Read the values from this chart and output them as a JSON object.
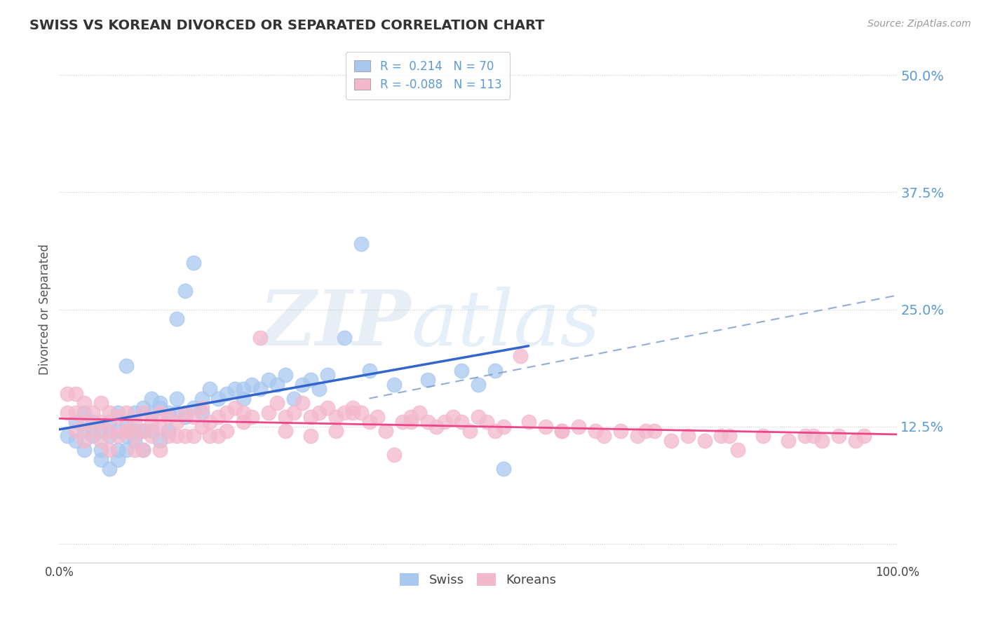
{
  "title": "SWISS VS KOREAN DIVORCED OR SEPARATED CORRELATION CHART",
  "source": "Source: ZipAtlas.com",
  "ylabel": "Divorced or Separated",
  "xlim": [
    0.0,
    1.0
  ],
  "ylim": [
    -0.02,
    0.52
  ],
  "yticks": [
    0.0,
    0.125,
    0.25,
    0.375,
    0.5
  ],
  "ytick_labels": [
    "",
    "12.5%",
    "25.0%",
    "37.5%",
    "50.0%"
  ],
  "xtick_vals": [
    0.0,
    1.0
  ],
  "xtick_labels": [
    "0.0%",
    "100.0%"
  ],
  "swiss_color": "#a8c8f0",
  "korean_color": "#f4b8cc",
  "swiss_line_color": "#3366cc",
  "korean_line_color": "#ee4488",
  "dash_line_color": "#7799cc",
  "ytick_color": "#5b9bd5",
  "legend_swiss_r": "0.214",
  "legend_swiss_n": "70",
  "legend_korean_r": "-0.088",
  "legend_korean_n": "113",
  "watermark_zip": "ZIP",
  "watermark_atlas": "atlas",
  "background_color": "#ffffff",
  "grid_color": "#c8c8c8",
  "swiss_x": [
    0.01,
    0.02,
    0.02,
    0.03,
    0.03,
    0.03,
    0.04,
    0.04,
    0.05,
    0.05,
    0.05,
    0.06,
    0.06,
    0.06,
    0.07,
    0.07,
    0.07,
    0.07,
    0.08,
    0.08,
    0.08,
    0.08,
    0.09,
    0.09,
    0.09,
    0.1,
    0.1,
    0.1,
    0.11,
    0.11,
    0.11,
    0.12,
    0.12,
    0.12,
    0.13,
    0.13,
    0.14,
    0.14,
    0.14,
    0.15,
    0.15,
    0.16,
    0.16,
    0.17,
    0.17,
    0.18,
    0.19,
    0.2,
    0.21,
    0.22,
    0.22,
    0.23,
    0.24,
    0.25,
    0.26,
    0.27,
    0.28,
    0.29,
    0.3,
    0.31,
    0.32,
    0.34,
    0.36,
    0.37,
    0.4,
    0.44,
    0.48,
    0.5,
    0.52,
    0.53
  ],
  "swiss_y": [
    0.115,
    0.11,
    0.13,
    0.1,
    0.12,
    0.14,
    0.115,
    0.13,
    0.1,
    0.12,
    0.09,
    0.115,
    0.13,
    0.08,
    0.1,
    0.12,
    0.14,
    0.09,
    0.115,
    0.13,
    0.1,
    0.19,
    0.12,
    0.11,
    0.14,
    0.145,
    0.12,
    0.1,
    0.155,
    0.12,
    0.14,
    0.15,
    0.11,
    0.145,
    0.14,
    0.12,
    0.24,
    0.14,
    0.155,
    0.27,
    0.135,
    0.3,
    0.145,
    0.155,
    0.14,
    0.165,
    0.155,
    0.16,
    0.165,
    0.155,
    0.165,
    0.17,
    0.165,
    0.175,
    0.17,
    0.18,
    0.155,
    0.17,
    0.175,
    0.165,
    0.18,
    0.22,
    0.32,
    0.185,
    0.17,
    0.175,
    0.185,
    0.17,
    0.185,
    0.08
  ],
  "korean_x": [
    0.01,
    0.01,
    0.02,
    0.02,
    0.02,
    0.03,
    0.03,
    0.03,
    0.04,
    0.04,
    0.05,
    0.05,
    0.05,
    0.06,
    0.06,
    0.06,
    0.07,
    0.07,
    0.08,
    0.08,
    0.08,
    0.09,
    0.09,
    0.09,
    0.1,
    0.1,
    0.1,
    0.11,
    0.11,
    0.12,
    0.12,
    0.12,
    0.13,
    0.13,
    0.14,
    0.14,
    0.15,
    0.15,
    0.16,
    0.16,
    0.17,
    0.17,
    0.18,
    0.18,
    0.19,
    0.19,
    0.2,
    0.2,
    0.21,
    0.22,
    0.23,
    0.24,
    0.25,
    0.26,
    0.27,
    0.27,
    0.28,
    0.29,
    0.3,
    0.3,
    0.31,
    0.32,
    0.33,
    0.33,
    0.34,
    0.35,
    0.36,
    0.37,
    0.38,
    0.39,
    0.4,
    0.41,
    0.42,
    0.43,
    0.44,
    0.45,
    0.46,
    0.47,
    0.48,
    0.49,
    0.5,
    0.52,
    0.53,
    0.55,
    0.56,
    0.58,
    0.6,
    0.62,
    0.64,
    0.65,
    0.67,
    0.69,
    0.71,
    0.73,
    0.75,
    0.77,
    0.79,
    0.81,
    0.84,
    0.87,
    0.89,
    0.91,
    0.93,
    0.95,
    0.22,
    0.35,
    0.42,
    0.51,
    0.6,
    0.7,
    0.8,
    0.9,
    0.96
  ],
  "korean_y": [
    0.14,
    0.16,
    0.12,
    0.14,
    0.16,
    0.11,
    0.13,
    0.15,
    0.12,
    0.14,
    0.11,
    0.13,
    0.15,
    0.1,
    0.12,
    0.14,
    0.115,
    0.135,
    0.12,
    0.14,
    0.12,
    0.1,
    0.13,
    0.115,
    0.12,
    0.14,
    0.1,
    0.115,
    0.13,
    0.125,
    0.14,
    0.1,
    0.135,
    0.115,
    0.13,
    0.115,
    0.14,
    0.115,
    0.135,
    0.115,
    0.145,
    0.125,
    0.13,
    0.115,
    0.135,
    0.115,
    0.14,
    0.12,
    0.145,
    0.13,
    0.135,
    0.22,
    0.14,
    0.15,
    0.135,
    0.12,
    0.14,
    0.15,
    0.135,
    0.115,
    0.14,
    0.145,
    0.135,
    0.12,
    0.14,
    0.145,
    0.14,
    0.13,
    0.135,
    0.12,
    0.095,
    0.13,
    0.135,
    0.14,
    0.13,
    0.125,
    0.13,
    0.135,
    0.13,
    0.12,
    0.135,
    0.12,
    0.125,
    0.2,
    0.13,
    0.125,
    0.12,
    0.125,
    0.12,
    0.115,
    0.12,
    0.115,
    0.12,
    0.11,
    0.115,
    0.11,
    0.115,
    0.1,
    0.115,
    0.11,
    0.115,
    0.11,
    0.115,
    0.11,
    0.14,
    0.14,
    0.13,
    0.13,
    0.12,
    0.12,
    0.115,
    0.115,
    0.115
  ]
}
